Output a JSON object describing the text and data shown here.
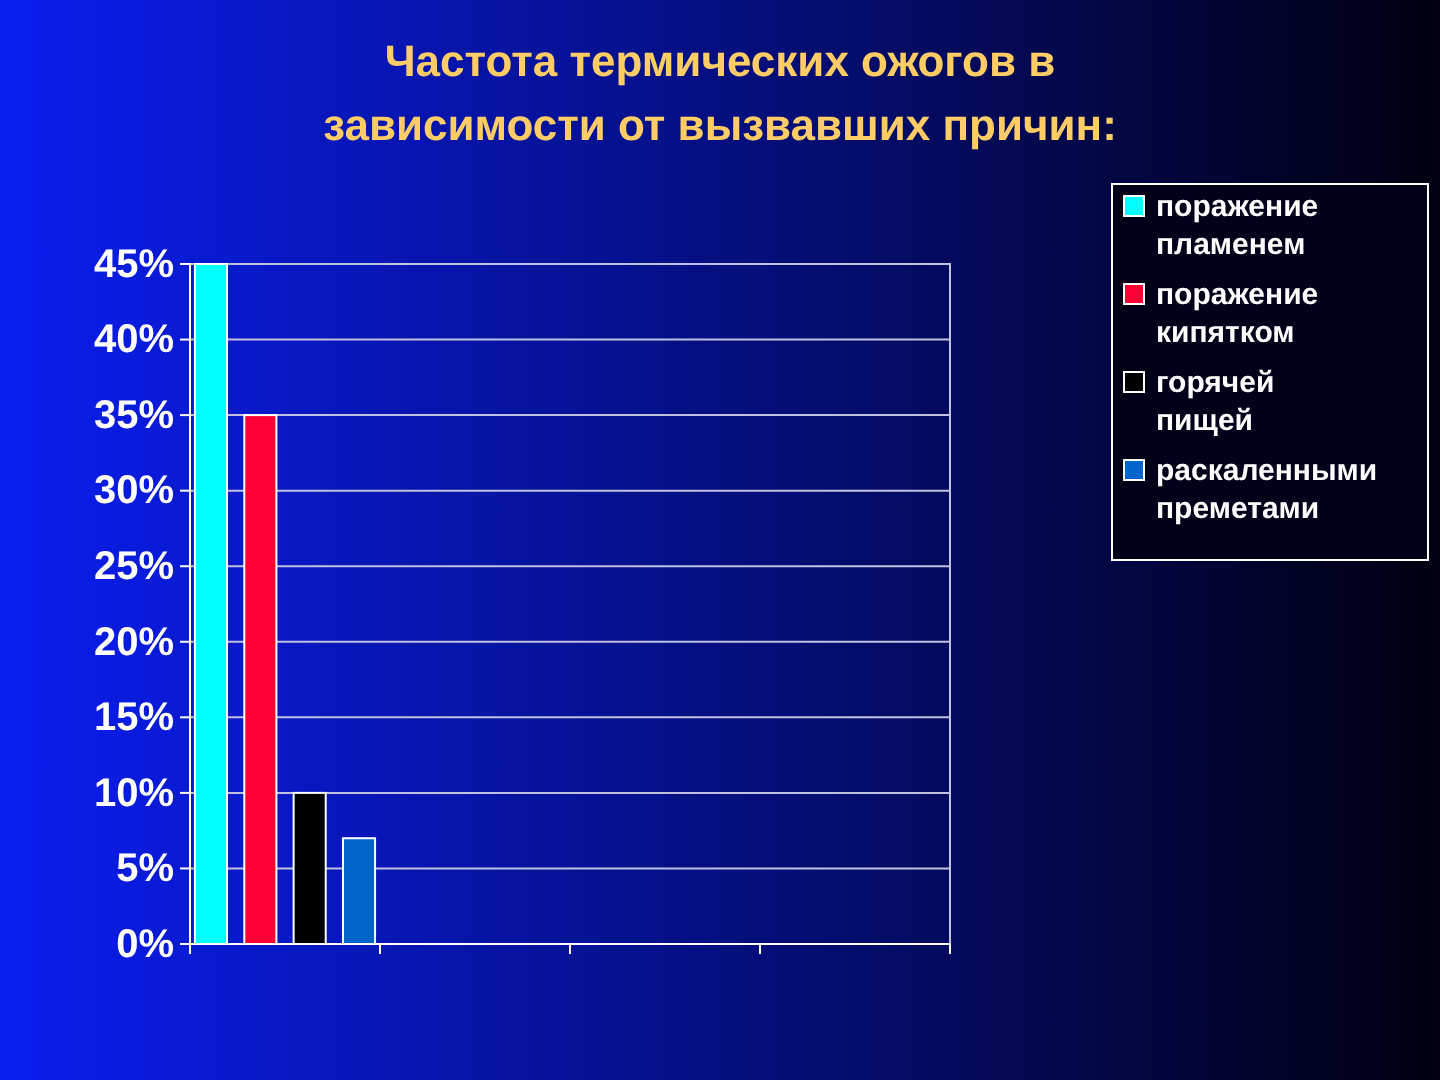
{
  "chart_data": {
    "type": "bar",
    "title": "Частота термических ожогов в зависимости от вызвавших причин:",
    "categories": [
      null,
      null,
      null,
      null
    ],
    "series": [
      {
        "name": "поражение пламенем",
        "color": "#00ffff",
        "values": [
          45,
          null,
          null,
          null
        ]
      },
      {
        "name": "поражение кипятком",
        "color": "#ff0033",
        "values": [
          35,
          null,
          null,
          null
        ]
      },
      {
        "name": "горячей пищей",
        "color": "#000000",
        "values": [
          10,
          null,
          null,
          null
        ]
      },
      {
        "name": "раскаленными преметами",
        "color": "#0066cc",
        "values": [
          7,
          null,
          null,
          null
        ]
      }
    ],
    "ylim": [
      0,
      45
    ],
    "yticks": [
      {
        "value": 0,
        "label": "0%"
      },
      {
        "value": 5,
        "label": "5%"
      },
      {
        "value": 10,
        "label": "10%"
      },
      {
        "value": 15,
        "label": "15%"
      },
      {
        "value": 20,
        "label": "20%"
      },
      {
        "value": 25,
        "label": "25%"
      },
      {
        "value": 30,
        "label": "30%"
      },
      {
        "value": 35,
        "label": "35%"
      },
      {
        "value": 40,
        "label": "40%"
      },
      {
        "value": 45,
        "label": "45%"
      }
    ],
    "grid": "y",
    "legend": "right"
  }
}
